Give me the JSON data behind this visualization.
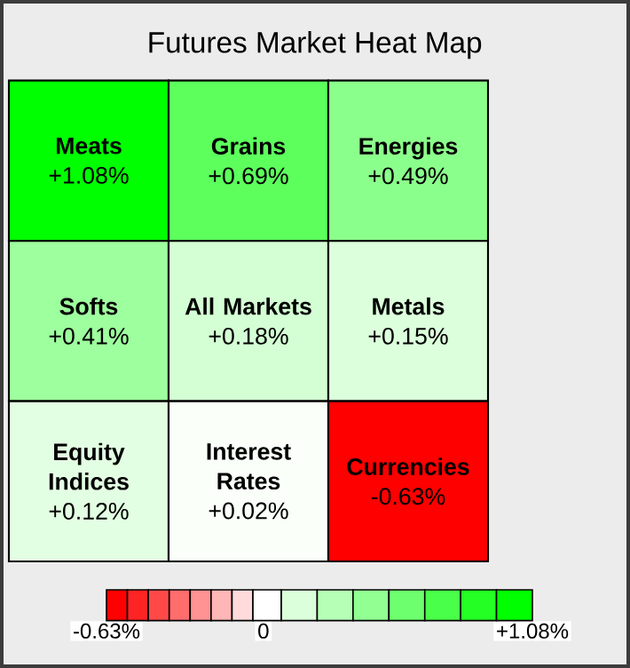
{
  "chart_data": {
    "type": "heatmap",
    "title": "Futures Market Heat Map",
    "categories": [
      null,
      null,
      null
    ],
    "y_categories": [
      null,
      null,
      null
    ],
    "cells": [
      [
        1.08,
        0.69,
        0.49
      ],
      [
        0.41,
        0.18,
        0.15
      ],
      [
        0.12,
        0.02,
        -0.63
      ]
    ],
    "cell_labels": [
      [
        "**Meats** +1.08%",
        "**Grains** +0.69%",
        "**Energies** +0.49%"
      ],
      [
        "**Softs** +0.41%",
        "**All Markets** +0.18%",
        "**Metals** +0.15%"
      ],
      [
        "**Equity Indices** +0.12%",
        "**Interest Rates** +0.02%",
        "**Currencies** -0.63%"
      ]
    ],
    "clim": [
      -0.63,
      1.08
    ],
    "cticks": [
      {
        "value": -0.63,
        "label": "-0.63%"
      },
      {
        "value": 0,
        "label": "0"
      },
      {
        "value": 1.08,
        "label": "+1.08%"
      }
    ]
  }
}
